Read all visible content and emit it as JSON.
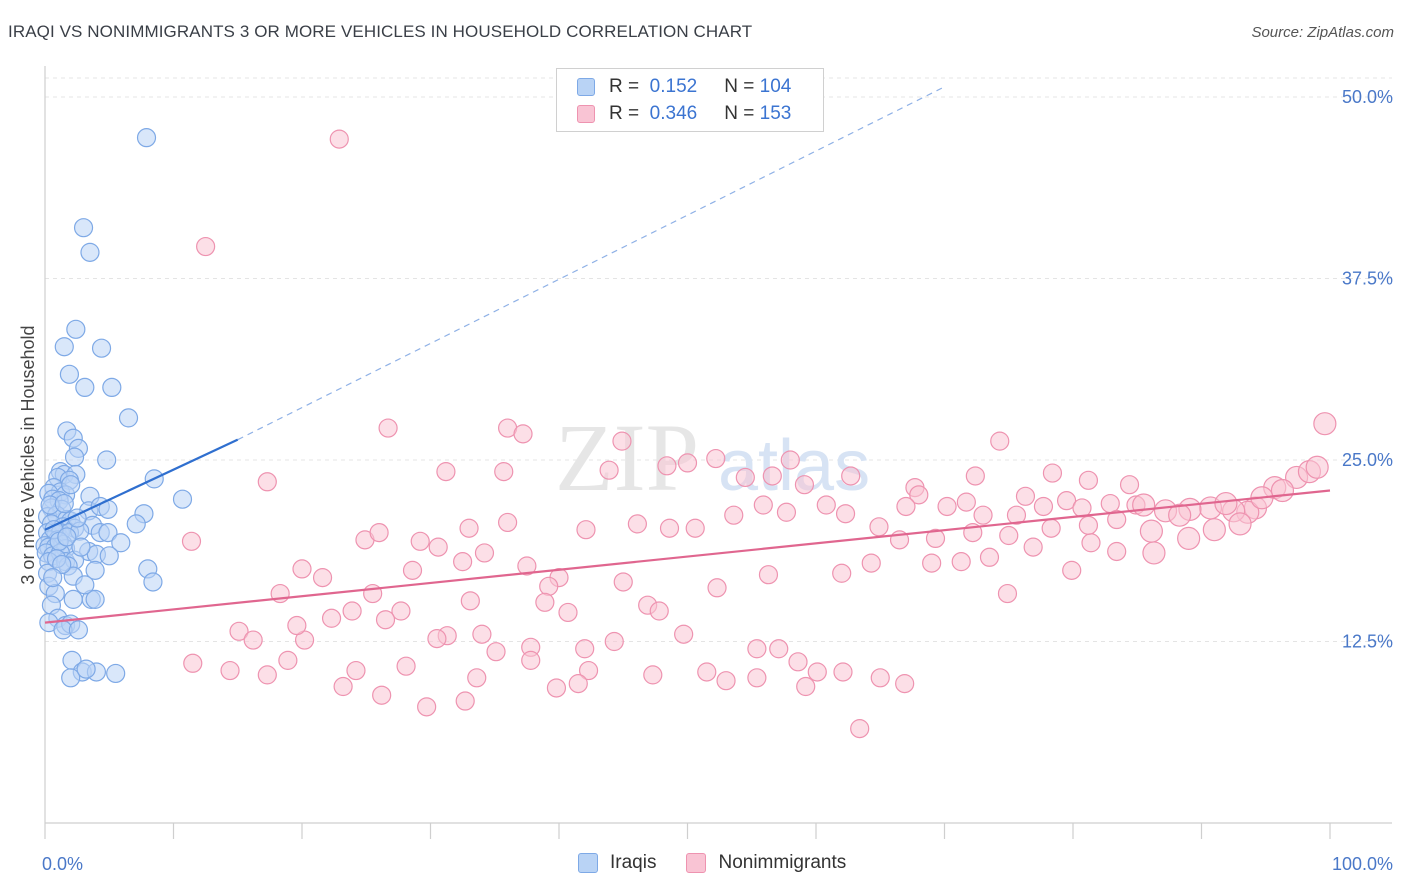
{
  "title": "IRAQI VS NONIMMIGRANTS 3 OR MORE VEHICLES IN HOUSEHOLD CORRELATION CHART",
  "source": "Source: ZipAtlas.com",
  "watermark": "ZIPatlas",
  "legend": {
    "rows": [
      {
        "r_label": "R =",
        "r_value": "0.152",
        "n_label": "N =",
        "n_value": "104",
        "fill": "#b9d3f5",
        "stroke": "#7ea9e6"
      },
      {
        "r_label": "R =",
        "r_value": "0.346",
        "n_label": "N =",
        "n_value": "153",
        "fill": "#f9c4d4",
        "stroke": "#ee93b0"
      }
    ]
  },
  "bottom_legend": {
    "iraqis": "Iraqis",
    "nonimmigrants": "Nonimmigrants"
  },
  "chart_data": {
    "type": "scatter",
    "title": "IRAQI VS NONIMMIGRANTS 3 OR MORE VEHICLES IN HOUSEHOLD CORRELATION CHART",
    "ylabel": "3 or more Vehicles in Household",
    "xlabel": "",
    "xlim": [
      0,
      100
    ],
    "ylim": [
      0,
      52
    ],
    "x_ticks_labels": [
      "0.0%",
      "100.0%"
    ],
    "y_ticks": [
      12.5,
      25.0,
      37.5,
      50.0
    ],
    "y_tick_labels": [
      "12.5%",
      "25.0%",
      "37.5%",
      "50.0%"
    ],
    "grid": true,
    "series": [
      {
        "name": "Iraqis",
        "color": "#7ea9e6",
        "fill": "#b9d3f5",
        "trend": {
          "x0": 0,
          "y0": 20.2,
          "x1": 15,
          "y1": 26.4,
          "dashed_to_x": 70,
          "dashed_to_y": 50.7
        },
        "points": [
          [
            7.9,
            47.2
          ],
          [
            3.0,
            41.0
          ],
          [
            3.5,
            39.3
          ],
          [
            2.4,
            34.0
          ],
          [
            1.5,
            32.8
          ],
          [
            4.4,
            32.7
          ],
          [
            1.9,
            30.9
          ],
          [
            3.1,
            30.0
          ],
          [
            5.2,
            30.0
          ],
          [
            6.5,
            27.9
          ],
          [
            1.7,
            27.0
          ],
          [
            2.2,
            26.5
          ],
          [
            2.6,
            25.8
          ],
          [
            2.3,
            25.2
          ],
          [
            4.8,
            25.0
          ],
          [
            1.2,
            24.2
          ],
          [
            1.5,
            24.0
          ],
          [
            2.4,
            24.0
          ],
          [
            1.0,
            23.8
          ],
          [
            1.9,
            23.6
          ],
          [
            8.5,
            23.7
          ],
          [
            0.7,
            23.1
          ],
          [
            1.2,
            22.8
          ],
          [
            1.6,
            22.6
          ],
          [
            0.3,
            22.7
          ],
          [
            0.6,
            22.3
          ],
          [
            1.1,
            22.2
          ],
          [
            3.5,
            22.5
          ],
          [
            10.7,
            22.3
          ],
          [
            0.5,
            21.7
          ],
          [
            1.3,
            21.6
          ],
          [
            3.4,
            21.5
          ],
          [
            4.3,
            21.8
          ],
          [
            4.9,
            21.6
          ],
          [
            0.2,
            21.1
          ],
          [
            0.9,
            21.2
          ],
          [
            7.7,
            21.3
          ],
          [
            1.7,
            20.9
          ],
          [
            2.0,
            20.8
          ],
          [
            0.5,
            20.6
          ],
          [
            1.4,
            20.4
          ],
          [
            2.3,
            20.3
          ],
          [
            3.7,
            20.5
          ],
          [
            7.1,
            20.6
          ],
          [
            0.2,
            20.0
          ],
          [
            0.9,
            19.9
          ],
          [
            1.2,
            20.0
          ],
          [
            1.9,
            20.0
          ],
          [
            2.7,
            20.1
          ],
          [
            4.3,
            20.0
          ],
          [
            4.9,
            20.0
          ],
          [
            0.4,
            19.5
          ],
          [
            1.0,
            19.5
          ],
          [
            1.4,
            19.2
          ],
          [
            0.0,
            19.1
          ],
          [
            0.3,
            19.0
          ],
          [
            0.8,
            19.0
          ],
          [
            1.6,
            18.9
          ],
          [
            5.9,
            19.3
          ],
          [
            0.1,
            18.6
          ],
          [
            0.6,
            18.4
          ],
          [
            1.2,
            18.6
          ],
          [
            3.4,
            18.7
          ],
          [
            4.0,
            18.5
          ],
          [
            5.0,
            18.4
          ],
          [
            0.3,
            18.0
          ],
          [
            1.6,
            18.0
          ],
          [
            2.3,
            18.1
          ],
          [
            1.8,
            17.7
          ],
          [
            3.9,
            17.4
          ],
          [
            8.0,
            17.5
          ],
          [
            0.2,
            17.2
          ],
          [
            2.2,
            17.0
          ],
          [
            8.4,
            16.6
          ],
          [
            0.3,
            16.3
          ],
          [
            0.8,
            15.8
          ],
          [
            2.2,
            15.4
          ],
          [
            3.6,
            15.4
          ],
          [
            3.9,
            15.4
          ],
          [
            0.5,
            15.0
          ],
          [
            1.0,
            14.1
          ],
          [
            0.3,
            13.8
          ],
          [
            1.6,
            13.6
          ],
          [
            2.0,
            13.7
          ],
          [
            1.4,
            13.3
          ],
          [
            2.6,
            13.3
          ],
          [
            2.1,
            11.2
          ],
          [
            2.9,
            10.4
          ],
          [
            4.0,
            10.4
          ],
          [
            5.5,
            10.3
          ],
          [
            2.0,
            10.0
          ],
          [
            3.2,
            10.6
          ],
          [
            0.4,
            21.9
          ],
          [
            0.7,
            20.2
          ],
          [
            1.1,
            19.4
          ],
          [
            1.7,
            19.7
          ],
          [
            2.5,
            21.0
          ],
          [
            2.8,
            19.0
          ],
          [
            0.9,
            18.2
          ],
          [
            1.3,
            17.8
          ],
          [
            0.6,
            16.9
          ],
          [
            3.1,
            16.4
          ],
          [
            1.5,
            22.0
          ],
          [
            2.0,
            23.3
          ]
        ]
      },
      {
        "name": "Nonimmigrants",
        "color": "#ee93b0",
        "fill": "#f9c4d4",
        "trend": {
          "x0": 0,
          "y0": 13.8,
          "x1": 100,
          "y1": 22.9
        },
        "points": [
          [
            22.9,
            47.1
          ],
          [
            12.5,
            39.7
          ],
          [
            26.7,
            27.2
          ],
          [
            36.0,
            27.2
          ],
          [
            50.0,
            24.8
          ],
          [
            37.2,
            26.8
          ],
          [
            44.9,
            26.3
          ],
          [
            74.3,
            26.3
          ],
          [
            99.6,
            27.5
          ],
          [
            35.7,
            24.2
          ],
          [
            43.9,
            24.3
          ],
          [
            52.2,
            25.1
          ],
          [
            58.0,
            25.0
          ],
          [
            48.4,
            24.6
          ],
          [
            54.5,
            23.8
          ],
          [
            62.7,
            23.9
          ],
          [
            67.7,
            23.1
          ],
          [
            78.4,
            24.1
          ],
          [
            81.2,
            23.6
          ],
          [
            17.3,
            23.5
          ],
          [
            31.2,
            24.2
          ],
          [
            56.6,
            23.9
          ],
          [
            59.1,
            23.3
          ],
          [
            72.4,
            23.9
          ],
          [
            84.4,
            23.3
          ],
          [
            95.7,
            23.1
          ],
          [
            97.4,
            23.8
          ],
          [
            98.4,
            24.2
          ],
          [
            68.0,
            22.6
          ],
          [
            71.7,
            22.1
          ],
          [
            76.3,
            22.5
          ],
          [
            79.5,
            22.2
          ],
          [
            84.9,
            21.9
          ],
          [
            90.7,
            21.7
          ],
          [
            94.2,
            21.7
          ],
          [
            93.6,
            21.4
          ],
          [
            92.5,
            21.5
          ],
          [
            89.1,
            21.6
          ],
          [
            87.2,
            21.5
          ],
          [
            85.5,
            21.9
          ],
          [
            82.9,
            22.0
          ],
          [
            80.7,
            21.7
          ],
          [
            77.7,
            21.8
          ],
          [
            75.6,
            21.2
          ],
          [
            73.0,
            21.2
          ],
          [
            70.2,
            21.8
          ],
          [
            67.0,
            21.8
          ],
          [
            64.9,
            20.4
          ],
          [
            62.3,
            21.3
          ],
          [
            60.8,
            21.9
          ],
          [
            57.7,
            21.4
          ],
          [
            55.9,
            21.9
          ],
          [
            53.6,
            21.2
          ],
          [
            50.6,
            20.3
          ],
          [
            48.6,
            20.3
          ],
          [
            46.1,
            20.6
          ],
          [
            42.1,
            20.2
          ],
          [
            36.0,
            20.7
          ],
          [
            34.2,
            18.6
          ],
          [
            30.6,
            19.0
          ],
          [
            24.9,
            19.5
          ],
          [
            26.0,
            20.0
          ],
          [
            28.6,
            17.4
          ],
          [
            32.5,
            18.0
          ],
          [
            37.5,
            17.7
          ],
          [
            40.0,
            16.9
          ],
          [
            45.0,
            16.6
          ],
          [
            39.2,
            16.3
          ],
          [
            40.7,
            14.5
          ],
          [
            42.0,
            12.0
          ],
          [
            20.0,
            17.5
          ],
          [
            11.4,
            19.4
          ],
          [
            25.5,
            15.8
          ],
          [
            27.7,
            14.6
          ],
          [
            21.6,
            16.9
          ],
          [
            33.1,
            15.3
          ],
          [
            31.3,
            12.9
          ],
          [
            30.5,
            12.7
          ],
          [
            38.9,
            15.2
          ],
          [
            46.9,
            15.0
          ],
          [
            52.3,
            16.2
          ],
          [
            56.3,
            17.1
          ],
          [
            62.0,
            17.2
          ],
          [
            64.3,
            17.9
          ],
          [
            69.0,
            17.9
          ],
          [
            71.3,
            18.0
          ],
          [
            73.5,
            18.3
          ],
          [
            76.9,
            19.0
          ],
          [
            81.4,
            19.3
          ],
          [
            83.4,
            18.7
          ],
          [
            86.3,
            18.6
          ],
          [
            89.0,
            19.6
          ],
          [
            91.0,
            20.2
          ],
          [
            93.0,
            20.6
          ],
          [
            79.9,
            17.4
          ],
          [
            74.9,
            15.8
          ],
          [
            47.8,
            14.6
          ],
          [
            49.7,
            13.0
          ],
          [
            44.3,
            12.5
          ],
          [
            37.8,
            12.1
          ],
          [
            35.1,
            11.8
          ],
          [
            28.1,
            10.8
          ],
          [
            24.2,
            10.5
          ],
          [
            42.3,
            10.5
          ],
          [
            47.3,
            10.2
          ],
          [
            51.5,
            10.4
          ],
          [
            53.0,
            9.8
          ],
          [
            55.4,
            10.0
          ],
          [
            59.2,
            9.4
          ],
          [
            58.6,
            11.1
          ],
          [
            57.1,
            12.0
          ],
          [
            55.4,
            12.0
          ],
          [
            60.1,
            10.4
          ],
          [
            62.1,
            10.4
          ],
          [
            65.0,
            10.0
          ],
          [
            66.9,
            9.6
          ],
          [
            63.4,
            6.5
          ],
          [
            41.5,
            9.6
          ],
          [
            39.8,
            9.3
          ],
          [
            37.8,
            11.2
          ],
          [
            33.6,
            10.0
          ],
          [
            32.7,
            8.4
          ],
          [
            29.7,
            8.0
          ],
          [
            26.2,
            8.8
          ],
          [
            23.2,
            9.4
          ],
          [
            18.9,
            11.2
          ],
          [
            17.3,
            10.2
          ],
          [
            14.4,
            10.5
          ],
          [
            11.5,
            11.0
          ],
          [
            15.1,
            13.2
          ],
          [
            20.2,
            12.6
          ],
          [
            22.3,
            14.1
          ],
          [
            18.3,
            15.8
          ],
          [
            16.2,
            12.6
          ],
          [
            23.9,
            14.6
          ],
          [
            26.5,
            14.0
          ],
          [
            19.6,
            13.6
          ],
          [
            34.0,
            13.0
          ],
          [
            29.2,
            19.4
          ],
          [
            33.0,
            20.3
          ],
          [
            96.3,
            22.9
          ],
          [
            99.0,
            24.5
          ],
          [
            94.7,
            22.4
          ],
          [
            91.9,
            22.0
          ],
          [
            88.3,
            21.2
          ],
          [
            86.1,
            20.1
          ],
          [
            83.4,
            20.9
          ],
          [
            81.2,
            20.5
          ],
          [
            78.3,
            20.3
          ],
          [
            75.0,
            19.8
          ],
          [
            72.2,
            20.0
          ],
          [
            69.3,
            19.6
          ],
          [
            66.5,
            19.5
          ]
        ]
      }
    ]
  }
}
